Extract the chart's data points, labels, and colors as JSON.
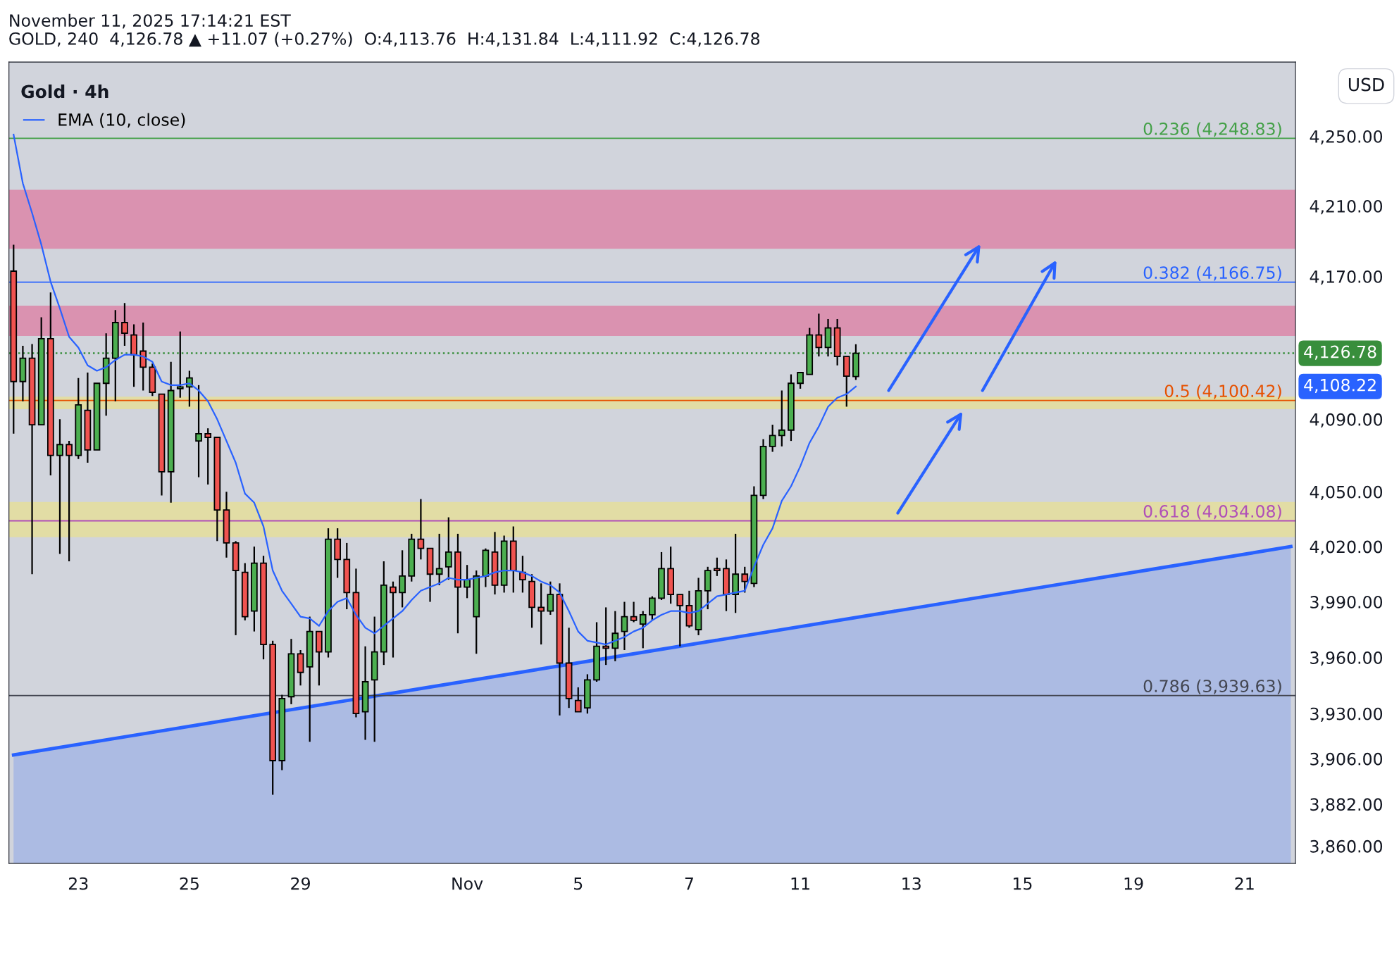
{
  "chart_data": {
    "type": "candlestick",
    "title": "Gold · 4h",
    "subtitle": "GOLD, 240  4,126.78 ▲ +11.07 (+0.27%)  O:4,113.76  H:4,131.84  L:4,111.92  C:4,126.78",
    "ylabel": "USD",
    "annotations": [
      "November 11, 2025 17:14:21 EST",
      "4,108.22"
    ],
    "categories": [
      null,
      null,
      null,
      null,
      null,
      null,
      null,
      "23",
      null,
      null,
      null,
      null,
      null,
      null,
      null,
      null,
      null,
      null,
      null,
      "25",
      null,
      null,
      null,
      null,
      null,
      null,
      null,
      null,
      null,
      null,
      null,
      "29",
      null,
      null,
      null,
      null,
      null,
      null,
      null,
      null,
      null,
      null,
      null,
      null,
      null,
      null,
      null,
      null,
      null,
      "Nov",
      null,
      null,
      null,
      null,
      null,
      null,
      null,
      null,
      null,
      null,
      null,
      "5",
      null,
      null,
      null,
      null,
      null,
      null,
      null,
      null,
      null,
      null,
      null,
      "7",
      null,
      null,
      null,
      null,
      null,
      null,
      null,
      null,
      null,
      null,
      null,
      "11",
      null,
      null,
      null,
      null,
      null,
      null,
      null,
      null,
      null,
      null,
      null,
      "13",
      null,
      null,
      null,
      null,
      null,
      null,
      null,
      null,
      null,
      null,
      null,
      "15",
      null,
      null,
      null,
      null,
      null,
      null,
      null,
      null,
      null,
      null,
      null,
      "19",
      null,
      null,
      null,
      null,
      null,
      null,
      null,
      null,
      null,
      null,
      null,
      "21",
      null,
      null,
      null,
      null,
      null
    ],
    "ohlc": [
      [
        4173,
        4188,
        4082,
        4111
      ],
      [
        4111,
        4131,
        4100,
        4124
      ],
      [
        4124,
        4132,
        4005,
        4087
      ],
      [
        4087,
        4147,
        4087,
        4135
      ],
      [
        4135,
        4161,
        4059,
        4070
      ],
      [
        4070,
        4090,
        4016,
        4076
      ],
      [
        4076,
        4078,
        4012,
        4070
      ],
      [
        4070,
        4113,
        4068,
        4098
      ],
      [
        4095,
        4116,
        4066,
        4073
      ],
      [
        4073,
        4110,
        4073,
        4110
      ],
      [
        4110,
        4138,
        4092,
        4124
      ],
      [
        4124,
        4151,
        4100,
        4144
      ],
      [
        4144,
        4155,
        4131,
        4138
      ],
      [
        4137,
        4143,
        4108,
        4126
      ],
      [
        4128,
        4144,
        4106,
        4119
      ],
      [
        4119,
        4121,
        4103,
        4105
      ],
      [
        4104,
        4104,
        4048,
        4061
      ],
      [
        4061,
        4122,
        4044,
        4106
      ],
      [
        4107,
        4139,
        4102,
        4108
      ],
      [
        4108,
        4117,
        4097,
        4113
      ],
      [
        4078,
        4109,
        4058,
        4082
      ],
      [
        4082,
        4085,
        4054,
        4080
      ],
      [
        4080,
        4080,
        4023,
        4040
      ],
      [
        4040,
        4050,
        4014,
        4022
      ],
      [
        4022,
        4023,
        3972,
        4007
      ],
      [
        4006,
        4011,
        3980,
        3982
      ],
      [
        3985,
        4020,
        3974,
        4011
      ],
      [
        4011,
        4015,
        3959,
        3967
      ],
      [
        3967,
        3969,
        3887,
        3905
      ],
      [
        3905,
        3940,
        3900,
        3938
      ],
      [
        3939,
        3970,
        3935,
        3962
      ],
      [
        3962,
        3964,
        3945,
        3952
      ],
      [
        3955,
        3982,
        3915,
        3974
      ],
      [
        3974,
        3974,
        3945,
        3963
      ],
      [
        3963,
        4030,
        3960,
        4024
      ],
      [
        4024,
        4030,
        4003,
        4013
      ],
      [
        4013,
        4022,
        3986,
        3995
      ],
      [
        3995,
        4008,
        3928,
        3930
      ],
      [
        3931,
        3966,
        3916,
        3947
      ],
      [
        3948,
        3982,
        3915,
        3963
      ],
      [
        3963,
        4012,
        3956,
        3999
      ],
      [
        3998,
        4001,
        3960,
        3995
      ],
      [
        3995,
        4018,
        3987,
        4004
      ],
      [
        4004,
        4027,
        4001,
        4024
      ],
      [
        4024,
        4046,
        4013,
        4019
      ],
      [
        4019,
        4019,
        3990,
        4005
      ],
      [
        4005,
        4027,
        3999,
        4008
      ],
      [
        4009,
        4036,
        4002,
        4017
      ],
      [
        4017,
        4027,
        3973,
        3998
      ],
      [
        3998,
        4010,
        3992,
        4002
      ],
      [
        3982,
        4007,
        3962,
        4004
      ],
      [
        4004,
        4019,
        3998,
        4018
      ],
      [
        4017,
        4028,
        3994,
        3999
      ],
      [
        3999,
        4026,
        3995,
        4023
      ],
      [
        4023,
        4031,
        3995,
        4007
      ],
      [
        4006,
        4015,
        3995,
        4002
      ],
      [
        4001,
        4005,
        3976,
        3987
      ],
      [
        3987,
        4000,
        3967,
        3985
      ],
      [
        3985,
        4001,
        3983,
        3994
      ],
      [
        3994,
        4000,
        3929,
        3957
      ],
      [
        3957,
        3976,
        3933,
        3938
      ],
      [
        3937,
        3944,
        3931,
        3931
      ],
      [
        3933,
        3951,
        3930,
        3948
      ],
      [
        3948,
        3979,
        3947,
        3966
      ],
      [
        3966,
        3987,
        3956,
        3965
      ],
      [
        3965,
        3985,
        3958,
        3973
      ],
      [
        3974,
        3990,
        3964,
        3982
      ],
      [
        3982,
        3990,
        3979,
        3980
      ],
      [
        3978,
        3985,
        3965,
        3983
      ],
      [
        3983,
        3993,
        3980,
        3992
      ],
      [
        3992,
        4017,
        3991,
        4008
      ],
      [
        4008,
        4020,
        3989,
        3994
      ],
      [
        3994,
        3994,
        3966,
        3988
      ],
      [
        3988,
        3996,
        3976,
        3977
      ],
      [
        3975,
        4003,
        3972,
        3996
      ],
      [
        3996,
        4009,
        3986,
        4007
      ],
      [
        4008,
        4014,
        4004,
        4007
      ],
      [
        4008,
        4013,
        3985,
        3994
      ],
      [
        3994,
        4027,
        3984,
        4005
      ],
      [
        4005,
        4009,
        3995,
        4001
      ],
      [
        4000,
        4053,
        3998,
        4048
      ],
      [
        4048,
        4079,
        4046,
        4075
      ],
      [
        4075,
        4087,
        4072,
        4081
      ],
      [
        4081,
        4106,
        4075,
        4084
      ],
      [
        4084,
        4115,
        4078,
        4110
      ],
      [
        4110,
        4116,
        4107,
        4116
      ],
      [
        4115,
        4141,
        4115,
        4137
      ],
      [
        4137,
        4149,
        4125,
        4130
      ],
      [
        4130,
        4146,
        4125,
        4141
      ],
      [
        4141,
        4146,
        4120,
        4125
      ],
      [
        4125,
        4125,
        4097,
        4114
      ],
      [
        4113.76,
        4131.84,
        4111.92,
        4126.78
      ],
      null,
      null,
      null,
      null,
      null,
      null,
      null,
      null,
      null,
      null,
      null,
      null,
      null,
      null,
      null,
      null,
      null,
      null,
      null,
      null,
      null,
      null,
      null,
      null,
      null,
      null,
      null,
      null,
      null,
      null,
      null,
      null,
      null,
      null,
      null,
      null,
      null,
      null,
      null,
      null,
      null,
      null,
      null,
      null,
      null,
      null,
      null
    ],
    "colors": [
      "#f05350",
      "#4caf50",
      "#f05350",
      "#4caf50",
      "#f05350",
      "#4caf50",
      "#f05350",
      "#4caf50",
      "#f05350",
      "#4caf50",
      "#4caf50",
      "#4caf50",
      "#f05350",
      "#f05350",
      "#f05350",
      "#f05350",
      "#f05350",
      "#4caf50",
      "#4caf50",
      "#4caf50",
      "#4caf50",
      "#f05350",
      "#f05350",
      "#f05350",
      "#f05350",
      "#f05350",
      "#4caf50",
      "#f05350",
      "#f05350",
      "#4caf50",
      "#4caf50",
      "#f05350",
      "#4caf50",
      "#f05350",
      "#4caf50",
      "#f05350",
      "#f05350",
      "#f05350",
      "#4caf50",
      "#4caf50",
      "#4caf50",
      "#f05350",
      "#4caf50",
      "#4caf50",
      "#f05350",
      "#f05350",
      "#4caf50",
      "#4caf50",
      "#f05350",
      "#4caf50",
      "#4caf50",
      "#4caf50",
      "#f05350",
      "#4caf50",
      "#f05350",
      "#f05350",
      "#f05350",
      "#f05350",
      "#4caf50",
      "#f05350",
      "#f05350",
      "#f05350",
      "#4caf50",
      "#4caf50",
      "#f05350",
      "#4caf50",
      "#4caf50",
      "#f05350",
      "#4caf50",
      "#4caf50",
      "#4caf50",
      "#f05350",
      "#f05350",
      "#f05350",
      "#4caf50",
      "#4caf50",
      "#f05350",
      "#f05350",
      "#4caf50",
      "#f05350",
      "#4caf50",
      "#4caf50",
      "#4caf50",
      "#4caf50",
      "#4caf50",
      "#4caf50",
      "#4caf50",
      "#f05350",
      "#4caf50",
      "#f05350",
      "#f05350",
      "#4caf50",
      null,
      null,
      null,
      null,
      null,
      null,
      null,
      null,
      null,
      null,
      null,
      null,
      null,
      null,
      null,
      null,
      null,
      null,
      null,
      null,
      null,
      null,
      null,
      null,
      null,
      null,
      null,
      null,
      null,
      null,
      null,
      null,
      null,
      null,
      null,
      null,
      null,
      null,
      null,
      null,
      null,
      null,
      null,
      null,
      null,
      null,
      null
    ],
    "series": [
      {
        "name": "EMA (10, close)",
        "type": "line",
        "color": "#2962ff",
        "values": [
          4251,
          4223,
          4206,
          4188,
          4167,
          4152,
          4136,
          4130,
          4120,
          4117,
          4119,
          4123,
          4126,
          4126,
          4125,
          4122,
          4111,
          4109,
          4109,
          4110,
          4106,
          4100,
          4090,
          4078,
          4066,
          4049,
          4044,
          4031,
          4007,
          3996,
          3989,
          3982,
          3981,
          3977,
          3985,
          3990,
          3992,
          3983,
          3976,
          3973,
          3977,
          3981,
          3985,
          3991,
          3996,
          3998,
          4000,
          4003,
          4002,
          4002,
          4003,
          4004,
          4006,
          4007,
          4007,
          4006,
          4004,
          4001,
          3999,
          3995,
          3985,
          3974,
          3969,
          3968,
          3967,
          3969,
          3971,
          3974,
          3976,
          3980,
          3983,
          3985,
          3985,
          3984,
          3985,
          3989,
          3993,
          3994,
          3995,
          3996,
          4009,
          4021,
          4030,
          4045,
          4053,
          4064,
          4077,
          4086,
          4097,
          4102,
          4104,
          4108.22,
          null,
          null,
          null,
          null,
          null,
          null,
          null,
          null,
          null,
          null,
          null,
          null,
          null,
          null,
          null,
          null,
          null,
          null,
          null,
          null,
          null,
          null,
          null,
          null,
          null,
          null,
          null,
          null,
          null,
          null,
          null,
          null,
          null,
          null,
          null,
          null,
          null,
          null,
          null,
          null,
          null,
          null,
          null,
          null,
          null,
          null,
          null
        ]
      },
      {
        "type": "area",
        "color": "#2962ff",
        "values": [
          3908,
          null,
          null,
          null,
          null,
          null,
          null,
          null,
          null,
          null,
          null,
          null,
          null,
          null,
          null,
          null,
          null,
          null,
          null,
          null,
          null,
          null,
          null,
          null,
          null,
          null,
          null,
          null,
          null,
          null,
          null,
          null,
          null,
          null,
          null,
          null,
          null,
          null,
          null,
          null,
          null,
          null,
          null,
          null,
          null,
          null,
          null,
          null,
          null,
          null,
          null,
          null,
          null,
          null,
          null,
          null,
          null,
          null,
          null,
          null,
          null,
          null,
          null,
          null,
          null,
          null,
          null,
          null,
          null,
          null,
          null,
          null,
          null,
          null,
          null,
          null,
          null,
          null,
          null,
          null,
          null,
          null,
          null,
          null,
          null,
          null,
          null,
          null,
          null,
          null,
          null,
          null,
          null,
          null,
          null,
          null,
          null,
          null,
          null,
          null,
          null,
          null,
          null,
          null,
          null,
          null,
          null,
          null,
          null,
          null,
          null,
          null,
          null,
          null,
          null,
          null,
          null,
          null,
          null,
          null,
          null,
          null,
          null,
          null,
          null,
          null,
          null,
          null,
          null,
          null,
          null,
          null,
          null,
          null,
          null,
          null,
          null,
          null,
          4020
        ]
      }
    ],
    "ref_lines": [
      {
        "axis": "y",
        "value": 4248.83,
        "label": "0.236 (4,248.83)",
        "color": "#43a047"
      },
      {
        "axis": "y",
        "value": 4166.75,
        "label": "0.382 (4,166.75)",
        "color": "#2962ff"
      },
      {
        "axis": "y",
        "value": 4100.42,
        "label": "0.5 (4,100.42)",
        "color": "#e65100"
      },
      {
        "axis": "y",
        "value": 4034.08,
        "label": "0.618 (4,034.08)",
        "color": "#b04fb8"
      },
      {
        "axis": "y",
        "value": 3939.63,
        "label": "0.786 (3,939.63)",
        "color": "#434651"
      },
      {
        "axis": "y",
        "value": 4126.78,
        "label": "4,126.78",
        "color": "#388e3c",
        "line_style": "dotted"
      }
    ],
    "bands": [
      {
        "axis": "y",
        "from": 4185.7,
        "to": 4219.3,
        "color": "#da92b0"
      },
      {
        "axis": "y",
        "from": 4136.5,
        "to": 4153.5,
        "color": "#da92b0"
      },
      {
        "axis": "y",
        "from": 4025.1,
        "to": 4044.4,
        "color": "#e2dda5"
      },
      {
        "axis": "y",
        "from": 4095.6,
        "to": 4102.6,
        "color": "#e2dda5"
      }
    ],
    "log": "y",
    "ylim": [
      3851,
      4293
    ],
    "yticks": [
      {
        "value": 3860,
        "label": "3,860.00"
      },
      {
        "value": 3882,
        "label": "3,882.00"
      },
      {
        "value": 3906,
        "label": "3,906.00"
      },
      {
        "value": 3930,
        "label": "3,930.00"
      },
      {
        "value": 3960,
        "label": "3,960.00"
      },
      {
        "value": 3990,
        "label": "3,990.00"
      },
      {
        "value": 4020,
        "label": "4,020.00"
      },
      {
        "value": 4050,
        "label": "4,050.00"
      },
      {
        "value": 4090,
        "label": "4,090.00"
      },
      {
        "value": 4170,
        "label": "4,170.00"
      },
      {
        "value": 4210,
        "label": "4,210.00"
      },
      {
        "value": 4250,
        "label": "4,250.00"
      }
    ],
    "grid": false,
    "legend": "top left"
  }
}
